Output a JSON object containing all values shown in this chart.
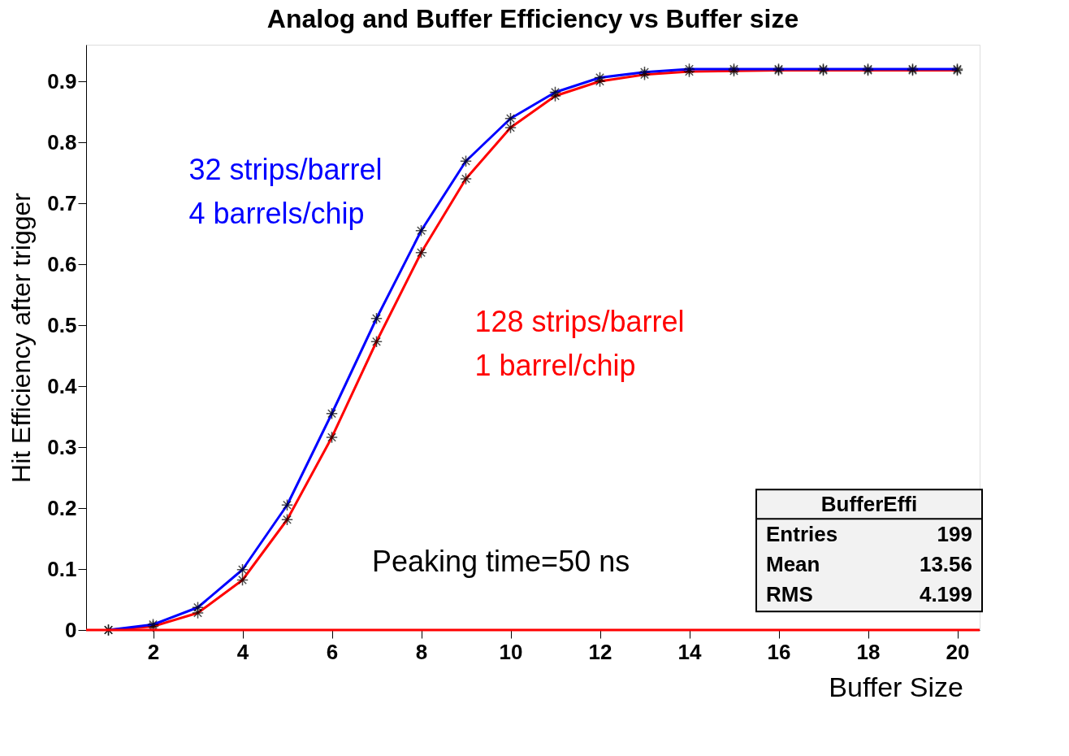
{
  "chart_data": {
    "type": "line",
    "title": "Analog and Buffer Efficiency vs Buffer size",
    "xlabel": "Buffer Size",
    "ylabel": "Hit Efficiency after trigger",
    "x": [
      1,
      2,
      3,
      4,
      5,
      6,
      7,
      8,
      9,
      10,
      11,
      12,
      13,
      14,
      15,
      16,
      17,
      18,
      19,
      20
    ],
    "series": [
      {
        "name": "128 strips/barrel\n1 barrel/chip",
        "color": "#ff0000",
        "values": [
          0,
          0.006,
          0.028,
          0.082,
          0.181,
          0.316,
          0.473,
          0.619,
          0.74,
          0.824,
          0.876,
          0.9,
          0.911,
          0.916,
          0.917,
          0.918,
          0.918,
          0.918,
          0.918,
          0.918
        ]
      },
      {
        "name": "32 strips/barrel\n4 barrels/chip",
        "color": "#0000ff",
        "values": [
          0,
          0.009,
          0.037,
          0.099,
          0.205,
          0.355,
          0.511,
          0.655,
          0.769,
          0.839,
          0.882,
          0.906,
          0.915,
          0.92,
          0.92,
          0.92,
          0.92,
          0.92,
          0.92,
          0.92
        ]
      }
    ],
    "xlim": [
      0.5,
      20.5
    ],
    "xticks": [
      2,
      4,
      6,
      8,
      10,
      12,
      14,
      16,
      18,
      20
    ],
    "ylim": [
      0,
      0.96
    ],
    "yticks": [
      0,
      0.1,
      0.2,
      0.3,
      0.4,
      0.5,
      0.6,
      0.7,
      0.8,
      0.9
    ],
    "ref_lines": [
      {
        "axis": "y",
        "value": 0,
        "color": "#ff0000"
      }
    ],
    "annotations": [
      "BufferEffi",
      "Entries 199",
      "Mean 13.56",
      "RMS 4.199",
      "Peaking time=50 ns"
    ],
    "marker": "cross",
    "line_style": "solid",
    "grid": false,
    "legend": false
  }
}
